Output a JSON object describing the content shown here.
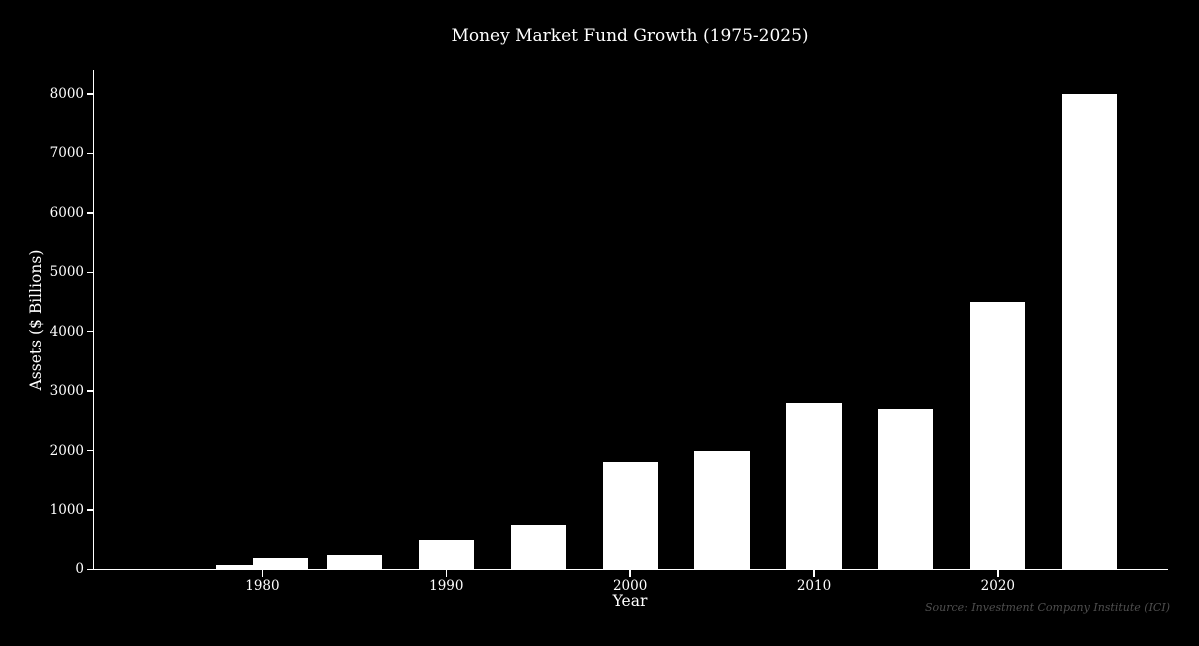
{
  "figure": {
    "background_color": "#000000",
    "bar_color": "#ffffff",
    "text_color": "#ffffff",
    "source_text_color": "#4f4f4f"
  },
  "chart_data": {
    "type": "bar",
    "title": "Money Market Fund Growth (1975-2025)",
    "xlabel": "Year",
    "ylabel": "Assets ($ Billions)",
    "source_note": "Source: Investment Company Institute (ICI)",
    "x": [
      1979,
      1981,
      1985,
      1990,
      1995,
      2000,
      2005,
      2010,
      2015,
      2020,
      2025
    ],
    "values": [
      75,
      200,
      250,
      500,
      750,
      1800,
      2000,
      2800,
      2700,
      4500,
      8000
    ],
    "bar_width_years": 3,
    "xtick_years": [
      1980,
      1990,
      2000,
      2010,
      2020
    ],
    "xtick_labels": [
      "1980",
      "1990",
      "2000",
      "2010",
      "2020"
    ],
    "ytick_values": [
      0,
      1000,
      2000,
      3000,
      4000,
      5000,
      6000,
      7000,
      8000
    ],
    "ytick_labels": [
      "0",
      "1000",
      "2000",
      "3000",
      "4000",
      "5000",
      "6000",
      "7000",
      "8000"
    ],
    "xlim": [
      1970.8,
      2029.2
    ],
    "ylim": [
      0,
      8000
    ],
    "grid": false,
    "legend": null
  }
}
